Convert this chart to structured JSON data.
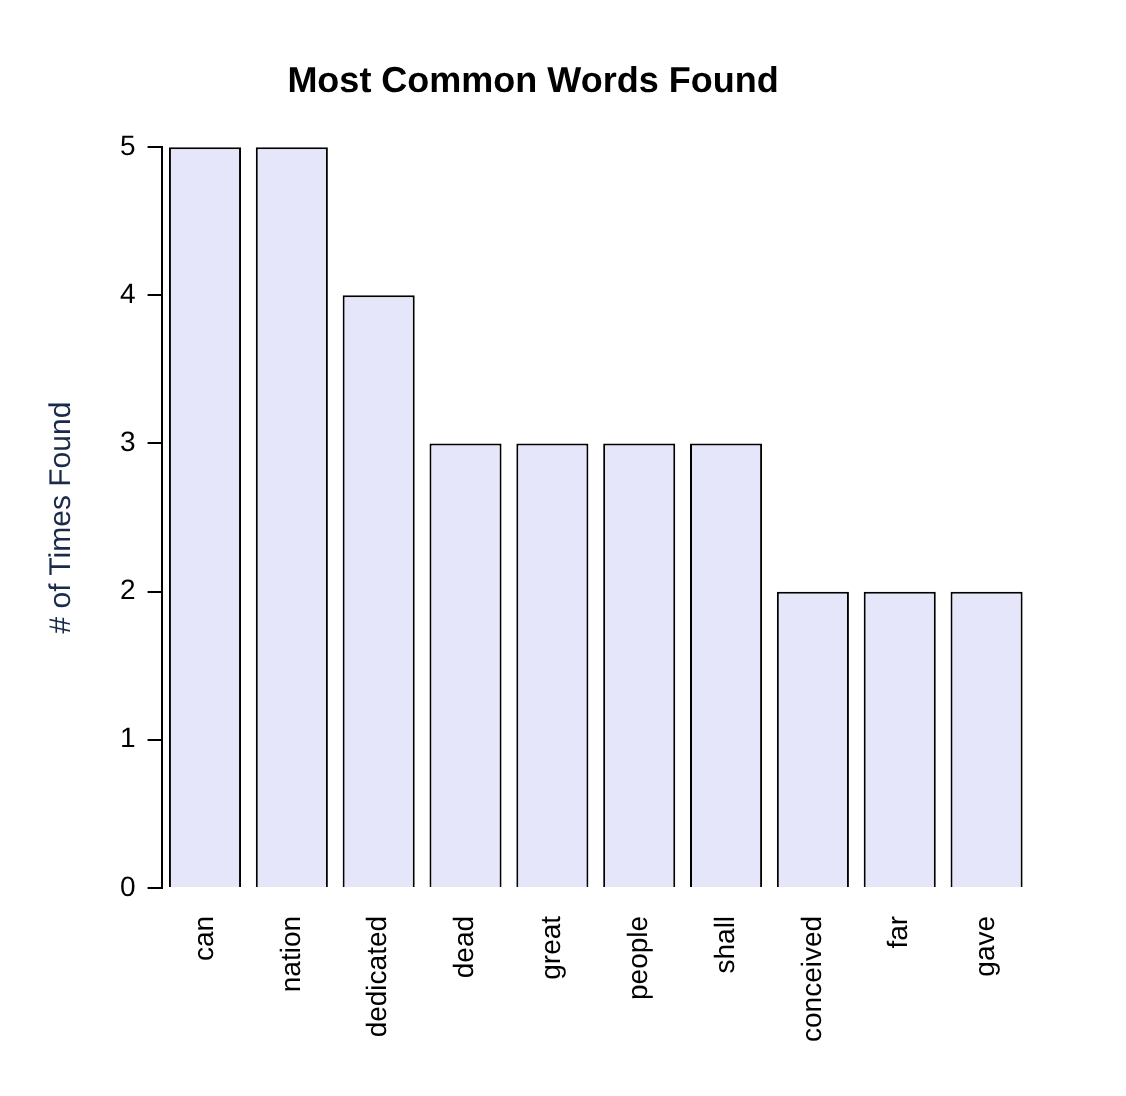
{
  "chart_data": {
    "type": "bar",
    "title": "Most Common Words Found",
    "ylabel": "# of Times Found",
    "categories": [
      "can",
      "nation",
      "dedicated",
      "dead",
      "great",
      "people",
      "shall",
      "conceived",
      "far",
      "gave"
    ],
    "values": [
      5,
      5,
      4,
      3,
      3,
      3,
      3,
      2,
      2,
      2
    ],
    "color": "#e6e6fa",
    "ylim": [
      0,
      5
    ],
    "yticks": [
      0,
      1,
      2,
      3,
      4,
      5
    ],
    "grid": false,
    "legend": false
  }
}
